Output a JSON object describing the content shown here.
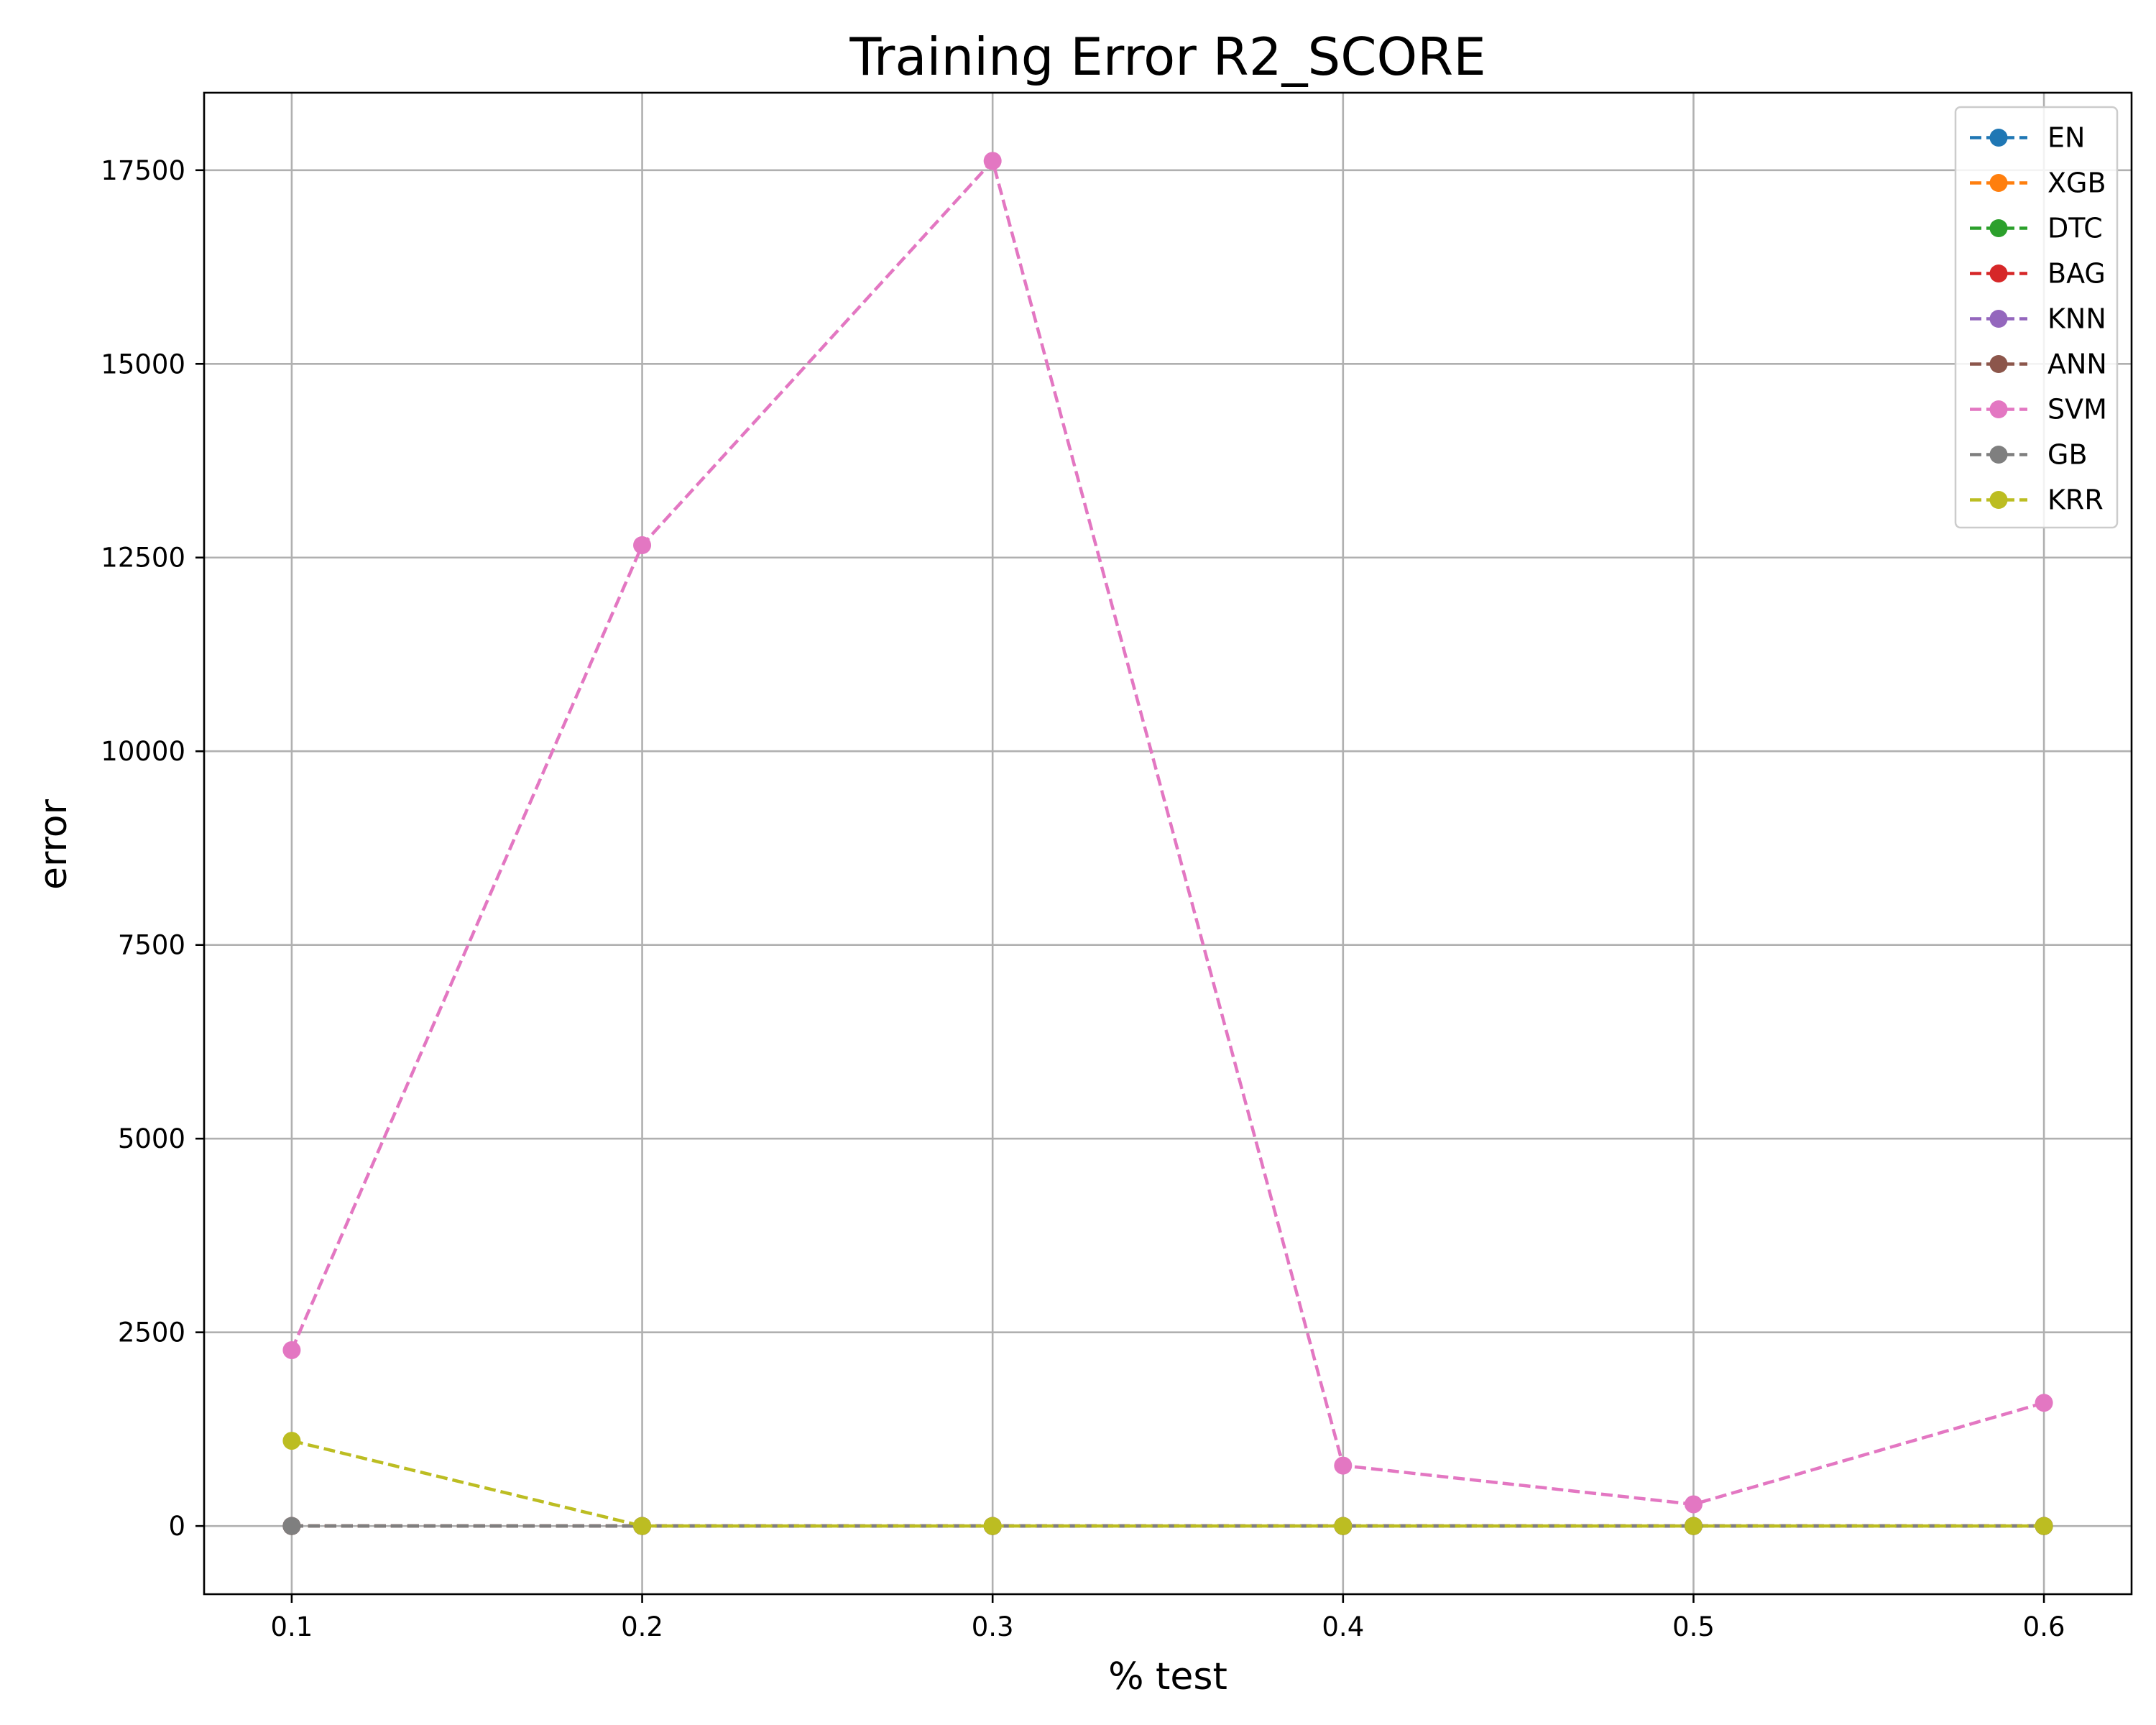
{
  "chart_data": {
    "type": "line",
    "title": "Training Error R2_SCORE",
    "xlabel": "% test",
    "ylabel": "error",
    "x": [
      0.1,
      0.2,
      0.3,
      0.4,
      0.5,
      0.6
    ],
    "x_tick_labels": [
      "0.1",
      "0.2",
      "0.3",
      "0.4",
      "0.5",
      "0.6"
    ],
    "y_ticks": [
      0,
      2500,
      5000,
      7500,
      10000,
      12500,
      15000,
      17500
    ],
    "y_tick_labels": [
      "0",
      "2500",
      "5000",
      "7500",
      "10000",
      "12500",
      "15000",
      "17500"
    ],
    "xlim": [
      0.075,
      0.625
    ],
    "ylim": [
      -880,
      18500
    ],
    "grid": true,
    "legend_position": "top-right",
    "line_style": "dashed",
    "marker": "circle",
    "series": [
      {
        "name": "EN",
        "color": "#1f77b4",
        "values": [
          0,
          0,
          0,
          0,
          0,
          0
        ]
      },
      {
        "name": "XGB",
        "color": "#ff7f0e",
        "values": [
          0,
          0,
          0,
          0,
          0,
          0
        ]
      },
      {
        "name": "DTC",
        "color": "#2ca02c",
        "values": [
          0,
          0,
          0,
          0,
          0,
          0
        ]
      },
      {
        "name": "BAG",
        "color": "#d62728",
        "values": [
          0,
          0,
          0,
          0,
          0,
          0
        ]
      },
      {
        "name": "KNN",
        "color": "#9467bd",
        "values": [
          0,
          0,
          0,
          0,
          0,
          0
        ]
      },
      {
        "name": "ANN",
        "color": "#8c564b",
        "values": [
          0,
          0,
          0,
          0,
          0,
          0
        ]
      },
      {
        "name": "SVM",
        "color": "#e377c2",
        "values": [
          2270,
          12660,
          17620,
          780,
          280,
          1590
        ]
      },
      {
        "name": "GB",
        "color": "#7f7f7f",
        "values": [
          0,
          0,
          0,
          0,
          0,
          0
        ]
      },
      {
        "name": "KRR",
        "color": "#bcbd22",
        "values": [
          1100,
          0,
          0,
          0,
          0,
          0
        ]
      }
    ]
  }
}
